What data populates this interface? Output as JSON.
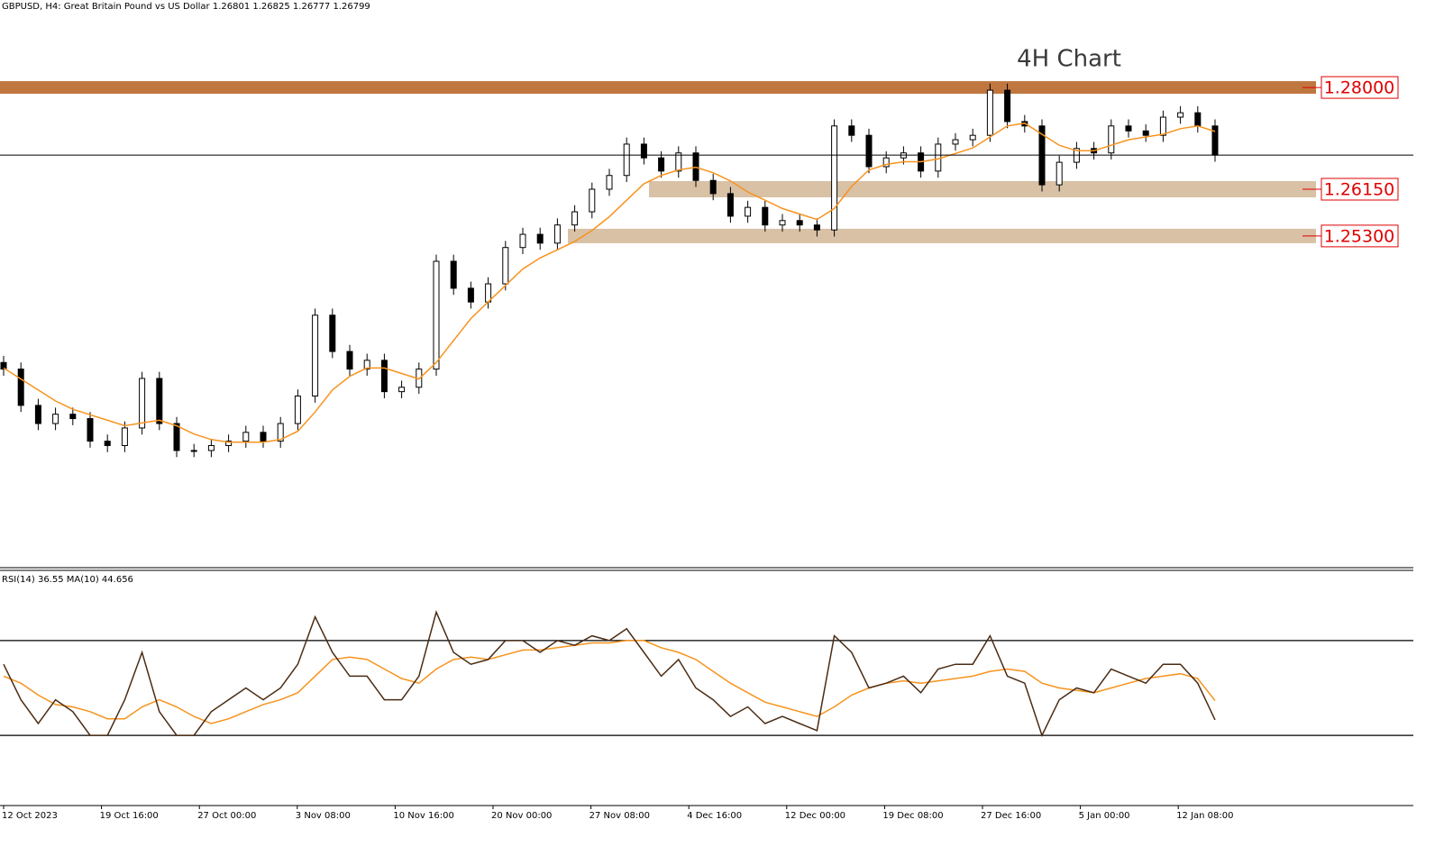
{
  "chart_data": {
    "type": "candlestick",
    "header": "GBPUSD, H4:  Great Britain Pound vs US Dollar  1.26801 1.26825 1.26777 1.26799",
    "title": "4H Chart",
    "ylim": [
      1.1927,
      1.2959
    ],
    "x_labels": [
      "12 Oct 2023",
      "19 Oct 16:00",
      "27 Oct 00:00",
      "3 Nov 08:00",
      "10 Nov 16:00",
      "20 Nov 00:00",
      "27 Nov 08:00",
      "4 Dec 16:00",
      "12 Dec 00:00",
      "19 Dec 08:00",
      "27 Dec 16:00",
      "5 Jan 00:00",
      "12 Jan 08:00"
    ],
    "levels": [
      {
        "value": 1.28,
        "label": "1.28000",
        "color": "#c0773f"
      },
      {
        "value": 1.2615,
        "label": "1.26150",
        "color": "#d8c1a5"
      },
      {
        "value": 1.253,
        "label": "1.25300",
        "color": "#d8c1a5"
      }
    ],
    "open": [
      1.23,
      1.2288,
      1.2222,
      1.2189,
      1.2206,
      1.2198,
      1.2157,
      1.2149,
      1.2181,
      1.2271,
      1.2189,
      1.214,
      1.214,
      1.2149,
      1.2157,
      1.2173,
      1.2157,
      1.2189,
      1.2239,
      1.2386,
      1.232,
      1.2288,
      1.2304,
      1.2247,
      1.2255,
      1.2288,
      1.2484,
      1.2435,
      1.241,
      1.2443,
      1.2509,
      1.2533,
      1.2517,
      1.255,
      1.2574,
      1.2615,
      1.264,
      1.2697,
      1.2672,
      1.2648,
      1.2681,
      1.2631,
      1.2607,
      1.2566,
      1.2582,
      1.255,
      1.2558,
      1.255,
      1.2541,
      1.273,
      1.2713,
      1.2656,
      1.2672,
      1.2681,
      1.2648,
      1.2697,
      1.2705,
      1.2713,
      1.2795,
      1.2738,
      1.273,
      1.2623,
      1.2664,
      1.2689,
      1.2681,
      1.273,
      1.2721,
      1.2713,
      1.2746,
      1.2754,
      1.273
    ],
    "high": [
      1.2312,
      1.23,
      1.2234,
      1.2218,
      1.2218,
      1.221,
      1.2169,
      1.2193,
      1.2283,
      1.2283,
      1.2201,
      1.2152,
      1.2161,
      1.2169,
      1.2185,
      1.2185,
      1.2201,
      1.2251,
      1.2398,
      1.2398,
      1.2332,
      1.2316,
      1.2316,
      1.2267,
      1.23,
      1.2496,
      1.2496,
      1.2447,
      1.2455,
      1.2521,
      1.2545,
      1.2545,
      1.2562,
      1.2586,
      1.2627,
      1.2652,
      1.2709,
      1.2709,
      1.2684,
      1.2693,
      1.2693,
      1.2643,
      1.2619,
      1.2594,
      1.2594,
      1.257,
      1.257,
      1.2562,
      1.2742,
      1.2742,
      1.2725,
      1.2684,
      1.2693,
      1.2693,
      1.2709,
      1.2717,
      1.2725,
      1.2807,
      1.2807,
      1.275,
      1.2742,
      1.2676,
      1.2701,
      1.2701,
      1.2742,
      1.2742,
      1.2733,
      1.2758,
      1.2766,
      1.2766,
      1.2742
    ],
    "low": [
      1.2276,
      1.221,
      1.2177,
      1.2177,
      1.2186,
      1.2145,
      1.2137,
      1.2137,
      1.2169,
      1.2177,
      1.2128,
      1.2128,
      1.2128,
      1.2137,
      1.2145,
      1.2145,
      1.2145,
      1.2177,
      1.2227,
      1.2308,
      1.2276,
      1.2276,
      1.2235,
      1.2235,
      1.2243,
      1.2276,
      1.2423,
      1.2398,
      1.2398,
      1.2431,
      1.2497,
      1.2505,
      1.2505,
      1.2538,
      1.2562,
      1.2603,
      1.2628,
      1.266,
      1.2636,
      1.2636,
      1.2619,
      1.2595,
      1.2554,
      1.2554,
      1.2538,
      1.2538,
      1.2538,
      1.2529,
      1.2529,
      1.2701,
      1.2644,
      1.2644,
      1.266,
      1.2636,
      1.2636,
      1.2685,
      1.2693,
      1.2701,
      1.2726,
      1.2718,
      1.2611,
      1.2611,
      1.2652,
      1.2669,
      1.2669,
      1.2709,
      1.2701,
      1.2701,
      1.2734,
      1.2718,
      1.2665
    ],
    "close": [
      1.2288,
      1.2222,
      1.2189,
      1.2206,
      1.2198,
      1.2157,
      1.2149,
      1.2181,
      1.2271,
      1.2189,
      1.214,
      1.214,
      1.2149,
      1.2157,
      1.2173,
      1.2157,
      1.2189,
      1.2239,
      1.2386,
      1.232,
      1.2288,
      1.2304,
      1.2247,
      1.2255,
      1.2288,
      1.2484,
      1.2435,
      1.241,
      1.2443,
      1.2509,
      1.2533,
      1.2517,
      1.255,
      1.2574,
      1.2615,
      1.264,
      1.2697,
      1.2672,
      1.2648,
      1.2681,
      1.2631,
      1.2607,
      1.2566,
      1.2582,
      1.255,
      1.2558,
      1.255,
      1.2541,
      1.273,
      1.2713,
      1.2656,
      1.2672,
      1.2681,
      1.2648,
      1.2697,
      1.2705,
      1.2713,
      1.2795,
      1.2738,
      1.273,
      1.2623,
      1.2664,
      1.2689,
      1.2681,
      1.273,
      1.2721,
      1.2713,
      1.2746,
      1.2754,
      1.273,
      1.2677
    ],
    "ma": {
      "color": "#f7931e",
      "values": [
        1.229,
        1.227,
        1.225,
        1.223,
        1.2215,
        1.2205,
        1.2195,
        1.2185,
        1.219,
        1.2195,
        1.2185,
        1.217,
        1.216,
        1.2155,
        1.2155,
        1.2155,
        1.216,
        1.2175,
        1.221,
        1.225,
        1.2275,
        1.229,
        1.229,
        1.228,
        1.227,
        1.23,
        1.234,
        1.238,
        1.241,
        1.244,
        1.247,
        1.249,
        1.2505,
        1.252,
        1.254,
        1.2565,
        1.2595,
        1.2625,
        1.264,
        1.265,
        1.2655,
        1.2645,
        1.263,
        1.261,
        1.2595,
        1.258,
        1.257,
        1.256,
        1.258,
        1.262,
        1.265,
        1.266,
        1.2665,
        1.2665,
        1.267,
        1.268,
        1.269,
        1.271,
        1.273,
        1.2735,
        1.2715,
        1.2695,
        1.2685,
        1.2685,
        1.2695,
        1.2705,
        1.271,
        1.2715,
        1.2725,
        1.273,
        1.272
      ]
    },
    "rsi": {
      "label": "RSI(14) 36.55 MA(10) 44.656",
      "ylim": [
        0,
        100
      ],
      "levels": [
        30,
        70
      ],
      "color": "#4a2c14",
      "values": [
        60,
        45,
        35,
        45,
        40,
        30,
        30,
        45,
        65,
        40,
        30,
        30,
        40,
        45,
        50,
        45,
        50,
        60,
        80,
        65,
        55,
        55,
        45,
        45,
        55,
        82,
        65,
        60,
        62,
        70,
        70,
        65,
        70,
        68,
        72,
        70,
        75,
        65,
        55,
        62,
        50,
        45,
        38,
        42,
        35,
        38,
        35,
        32,
        72,
        65,
        50,
        52,
        55,
        48,
        58,
        60,
        60,
        72,
        55,
        52,
        30,
        45,
        50,
        48,
        58,
        55,
        52,
        60,
        60,
        52,
        36.55
      ],
      "ma_color": "#f7931e",
      "ma_values": [
        55,
        52,
        47,
        43,
        42,
        40,
        37,
        37,
        42,
        45,
        42,
        38,
        35,
        37,
        40,
        43,
        45,
        48,
        55,
        62,
        63,
        62,
        58,
        54,
        52,
        58,
        62,
        63,
        62,
        64,
        66,
        66,
        67,
        68,
        69,
        69,
        70,
        70,
        67,
        65,
        62,
        57,
        52,
        48,
        44,
        42,
        40,
        38,
        42,
        47,
        50,
        52,
        53,
        52,
        53,
        54,
        55,
        57,
        58,
        57,
        52,
        50,
        49,
        48,
        50,
        52,
        54,
        55,
        56,
        54,
        44.656
      ]
    }
  }
}
